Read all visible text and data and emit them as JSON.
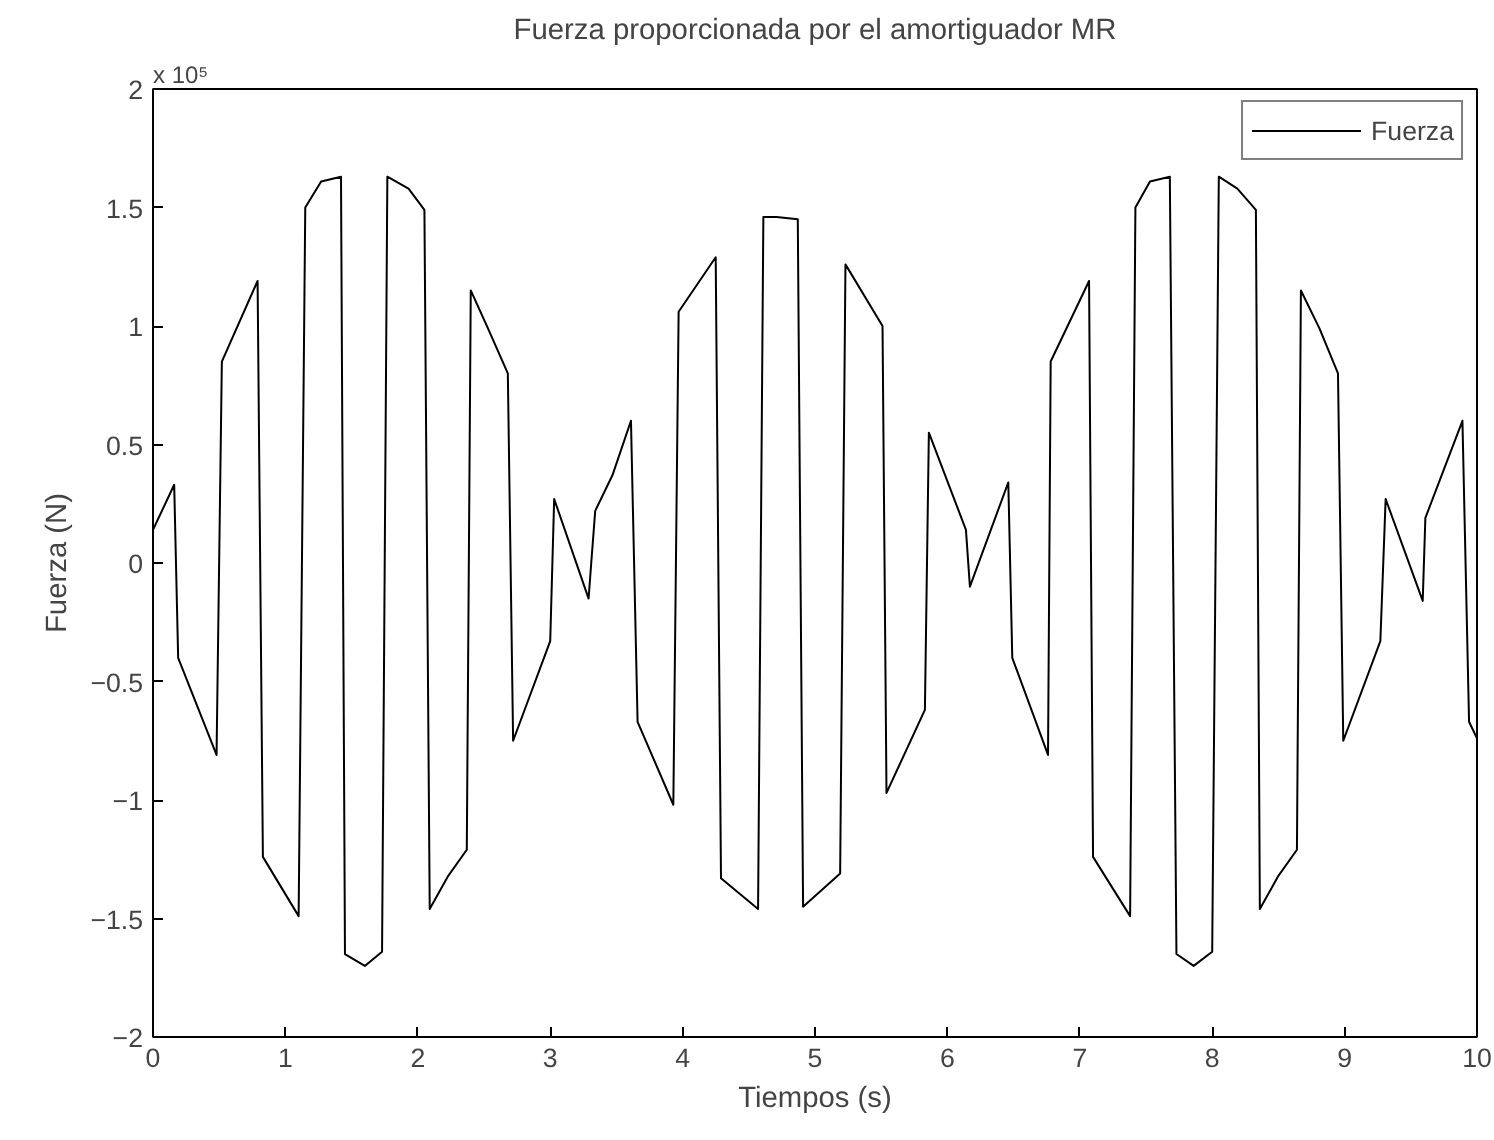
{
  "chart_data": {
    "type": "line",
    "title": "Fuerza proporcionada por el amortiguador MR",
    "xlabel": "Tiempos (s)",
    "ylabel": "Fuerza (N)",
    "annotations": [
      "x 10⁵"
    ],
    "legend": "top right",
    "grid": false,
    "marker": "none",
    "line_style": "solid",
    "xlim": [
      0,
      10
    ],
    "xticks": [
      0,
      1,
      2,
      3,
      4,
      5,
      6,
      7,
      8,
      9,
      10
    ],
    "ylim": [
      -2,
      2
    ],
    "yticks": [
      -2,
      -1.5,
      -1,
      -0.5,
      0,
      0.5,
      1,
      1.5,
      2
    ],
    "series": [
      {
        "name": "Fuerza",
        "color": "#000000",
        "x": [
          0,
          0.16,
          0.19,
          0.48,
          0.52,
          0.79,
          0.83,
          1.1,
          1.15,
          1.27,
          1.42,
          1.45,
          1.6,
          1.73,
          1.77,
          1.93,
          2.05,
          2.09,
          2.23,
          2.37,
          2.4,
          2.53,
          2.68,
          2.72,
          3.0,
          3.03,
          3.29,
          3.31,
          3.34,
          3.47,
          3.61,
          3.66,
          3.93,
          3.97,
          4.25,
          4.29,
          4.57,
          4.61,
          4.71,
          4.87,
          4.91,
          5.19,
          5.23,
          5.51,
          5.54,
          5.83,
          5.86,
          6.14,
          6.17,
          6.46,
          6.49,
          6.76,
          6.78,
          7.07,
          7.1,
          7.38,
          7.42,
          7.53,
          7.68,
          7.73,
          7.86,
          8.0,
          8.05,
          8.19,
          8.33,
          8.36,
          8.5,
          8.64,
          8.67,
          8.81,
          8.95,
          8.99,
          9.27,
          9.31,
          9.59,
          9.61,
          9.89,
          9.94,
          10.0
        ],
        "values": [
          0.14,
          0.33,
          -0.4,
          -0.81,
          0.85,
          1.19,
          -1.24,
          -1.49,
          1.5,
          1.61,
          1.63,
          -1.65,
          -1.7,
          -1.64,
          1.63,
          1.58,
          1.49,
          -1.46,
          -1.32,
          -1.21,
          1.15,
          0.99,
          0.8,
          -0.75,
          -0.33,
          0.27,
          -0.15,
          0,
          0.22,
          0.37,
          0.6,
          -0.67,
          -1.02,
          1.06,
          1.29,
          -1.33,
          -1.46,
          1.46,
          1.46,
          1.45,
          -1.45,
          -1.31,
          1.26,
          1.0,
          -0.97,
          -0.62,
          0.55,
          0.14,
          -0.1,
          0.34,
          -0.4,
          -0.81,
          0.85,
          1.19,
          -1.24,
          -1.49,
          1.5,
          1.61,
          1.63,
          -1.65,
          -1.7,
          -1.64,
          1.63,
          1.58,
          1.49,
          -1.46,
          -1.32,
          -1.21,
          1.15,
          0.99,
          0.8,
          -0.75,
          -0.33,
          0.27,
          -0.16,
          0.19,
          0.6,
          -0.67,
          -0.74
        ]
      }
    ]
  }
}
